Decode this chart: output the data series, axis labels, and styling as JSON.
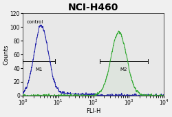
{
  "title": "NCI-H460",
  "xlabel": "FLI-H",
  "ylabel": "Counts",
  "title_fontsize": 10,
  "label_fontsize": 6,
  "tick_fontsize": 5.5,
  "xmin": 1.0,
  "xmax": 10000.0,
  "ymin": 0,
  "ymax": 120,
  "yticks": [
    0,
    20,
    40,
    60,
    80,
    100,
    120
  ],
  "control_color": "#2222aa",
  "sample_color": "#33aa33",
  "ctrl_peak_log": 0.52,
  "ctrl_std_log": 0.2,
  "ctrl_peak_y": 100,
  "samp_peak_log": 2.72,
  "samp_std_log": 0.22,
  "samp_peak_y": 93,
  "m1_label": "M1",
  "m2_label": "M2",
  "control_label": "control",
  "m1_x1": 1.0,
  "m1_x2": 8.0,
  "m1_y": 50,
  "m2_x1": 150,
  "m2_x2": 3500,
  "m2_y": 50,
  "bg_color": "#f0f0f0",
  "plot_bg_color": "#e8e8e8",
  "noise_seed": 7
}
